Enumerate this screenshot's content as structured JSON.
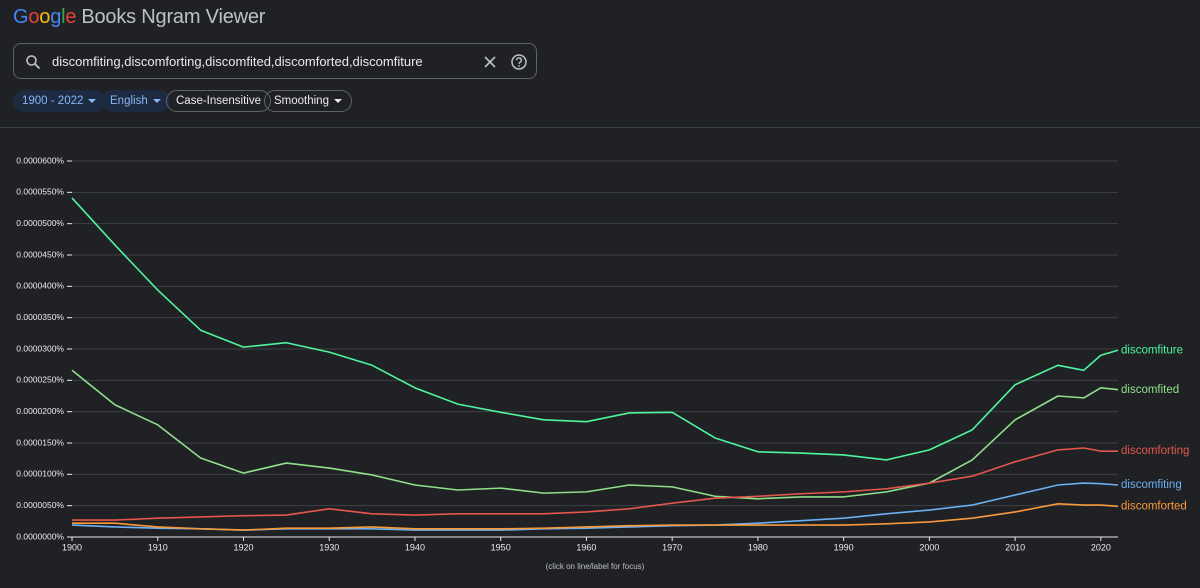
{
  "header": {
    "logo": "Google",
    "product": "Books Ngram Viewer"
  },
  "search": {
    "query": "discomfiting,discomforting,discomfited,discomforted,discomfiture"
  },
  "filters": {
    "years": "1900 - 2022",
    "language": "English",
    "case": "Case-Insensitive",
    "smoothing": "Smoothing"
  },
  "chart_data": {
    "type": "line",
    "note": "(click on line/label for focus)",
    "x": [
      1900,
      1905,
      1910,
      1915,
      1920,
      1925,
      1930,
      1935,
      1940,
      1945,
      1950,
      1955,
      1960,
      1965,
      1970,
      1975,
      1980,
      1985,
      1990,
      1995,
      2000,
      2005,
      2010,
      2015,
      2018,
      2020,
      2022
    ],
    "xlim": [
      1900,
      2022
    ],
    "xticks": [
      1900,
      1910,
      1920,
      1930,
      1940,
      1950,
      1960,
      1970,
      1980,
      1990,
      2000,
      2010,
      2020
    ],
    "ylim": [
      0,
      6e-05
    ],
    "yticks": [
      {
        "value": 0,
        "label": "0.0000000%"
      },
      {
        "value": 5e-06,
        "label": "0.0000050%"
      },
      {
        "value": 1e-05,
        "label": "0.0000100%"
      },
      {
        "value": 1.5e-05,
        "label": "0.0000150%"
      },
      {
        "value": 2e-05,
        "label": "0.0000200%"
      },
      {
        "value": 2.5e-05,
        "label": "0.0000250%"
      },
      {
        "value": 3e-05,
        "label": "0.0000300%"
      },
      {
        "value": 3.5e-05,
        "label": "0.0000350%"
      },
      {
        "value": 4e-05,
        "label": "0.0000400%"
      },
      {
        "value": 4.5e-05,
        "label": "0.0000450%"
      },
      {
        "value": 5e-05,
        "label": "0.0000500%"
      },
      {
        "value": 5.5e-05,
        "label": "0.0000550%"
      },
      {
        "value": 6e-05,
        "label": "0.0000600%"
      }
    ],
    "grid": true,
    "series": [
      {
        "name": "discomfiture",
        "color": "#4ef5a0",
        "values": [
          5.41e-05,
          4.66e-05,
          3.94e-05,
          3.3e-05,
          3.03e-05,
          3.1e-05,
          2.95e-05,
          2.74e-05,
          2.38e-05,
          2.12e-05,
          1.99e-05,
          1.87e-05,
          1.84e-05,
          1.98e-05,
          1.99e-05,
          1.58e-05,
          1.36e-05,
          1.34e-05,
          1.31e-05,
          1.23e-05,
          1.39e-05,
          1.71e-05,
          2.43e-05,
          2.74e-05,
          2.66e-05,
          2.9e-05,
          2.98e-05
        ]
      },
      {
        "name": "discomfited",
        "color": "#8fe08a",
        "values": [
          2.66e-05,
          2.11e-05,
          1.79e-05,
          1.26e-05,
          1.02e-05,
          1.18e-05,
          1.1e-05,
          9.9e-06,
          8.3e-06,
          7.5e-06,
          7.8e-06,
          7e-06,
          7.2e-06,
          8.3e-06,
          8e-06,
          6.5e-06,
          6.1e-06,
          6.4e-06,
          6.4e-06,
          7.2e-06,
          8.6e-06,
          1.23e-05,
          1.87e-05,
          2.25e-05,
          2.22e-05,
          2.38e-05,
          2.35e-05
        ]
      },
      {
        "name": "discomforting",
        "color": "#e5564e",
        "values": [
          2.7e-06,
          2.7e-06,
          3e-06,
          3.2e-06,
          3.4e-06,
          3.5e-06,
          4.5e-06,
          3.7e-06,
          3.5e-06,
          3.7e-06,
          3.7e-06,
          3.7e-06,
          4e-06,
          4.5e-06,
          5.4e-06,
          6.2e-06,
          6.5e-06,
          6.9e-06,
          7.2e-06,
          7.7e-06,
          8.6e-06,
          9.7e-06,
          1.2e-05,
          1.39e-05,
          1.42e-05,
          1.37e-05,
          1.37e-05
        ]
      },
      {
        "name": "discomfiting",
        "color": "#6cb0f2",
        "values": [
          1.9e-06,
          1.6e-06,
          1.4e-06,
          1.3e-06,
          1.1e-06,
          1.3e-06,
          1.3e-06,
          1.3e-06,
          1.1e-06,
          1.1e-06,
          1.1e-06,
          1.3e-06,
          1.4e-06,
          1.6e-06,
          1.8e-06,
          1.9e-06,
          2.2e-06,
          2.6e-06,
          3e-06,
          3.7e-06,
          4.3e-06,
          5.1e-06,
          6.7e-06,
          8.3e-06,
          8.6e-06,
          8.5e-06,
          8.3e-06
        ]
      },
      {
        "name": "discomforted",
        "color": "#f79a3c",
        "values": [
          2.2e-06,
          2.2e-06,
          1.6e-06,
          1.3e-06,
          1.1e-06,
          1.4e-06,
          1.4e-06,
          1.6e-06,
          1.3e-06,
          1.3e-06,
          1.3e-06,
          1.4e-06,
          1.6e-06,
          1.8e-06,
          1.9e-06,
          1.9e-06,
          1.9e-06,
          1.9e-06,
          1.9e-06,
          2.1e-06,
          2.4e-06,
          3e-06,
          4e-06,
          5.3e-06,
          5.1e-06,
          5.1e-06,
          4.9e-06
        ]
      }
    ]
  }
}
